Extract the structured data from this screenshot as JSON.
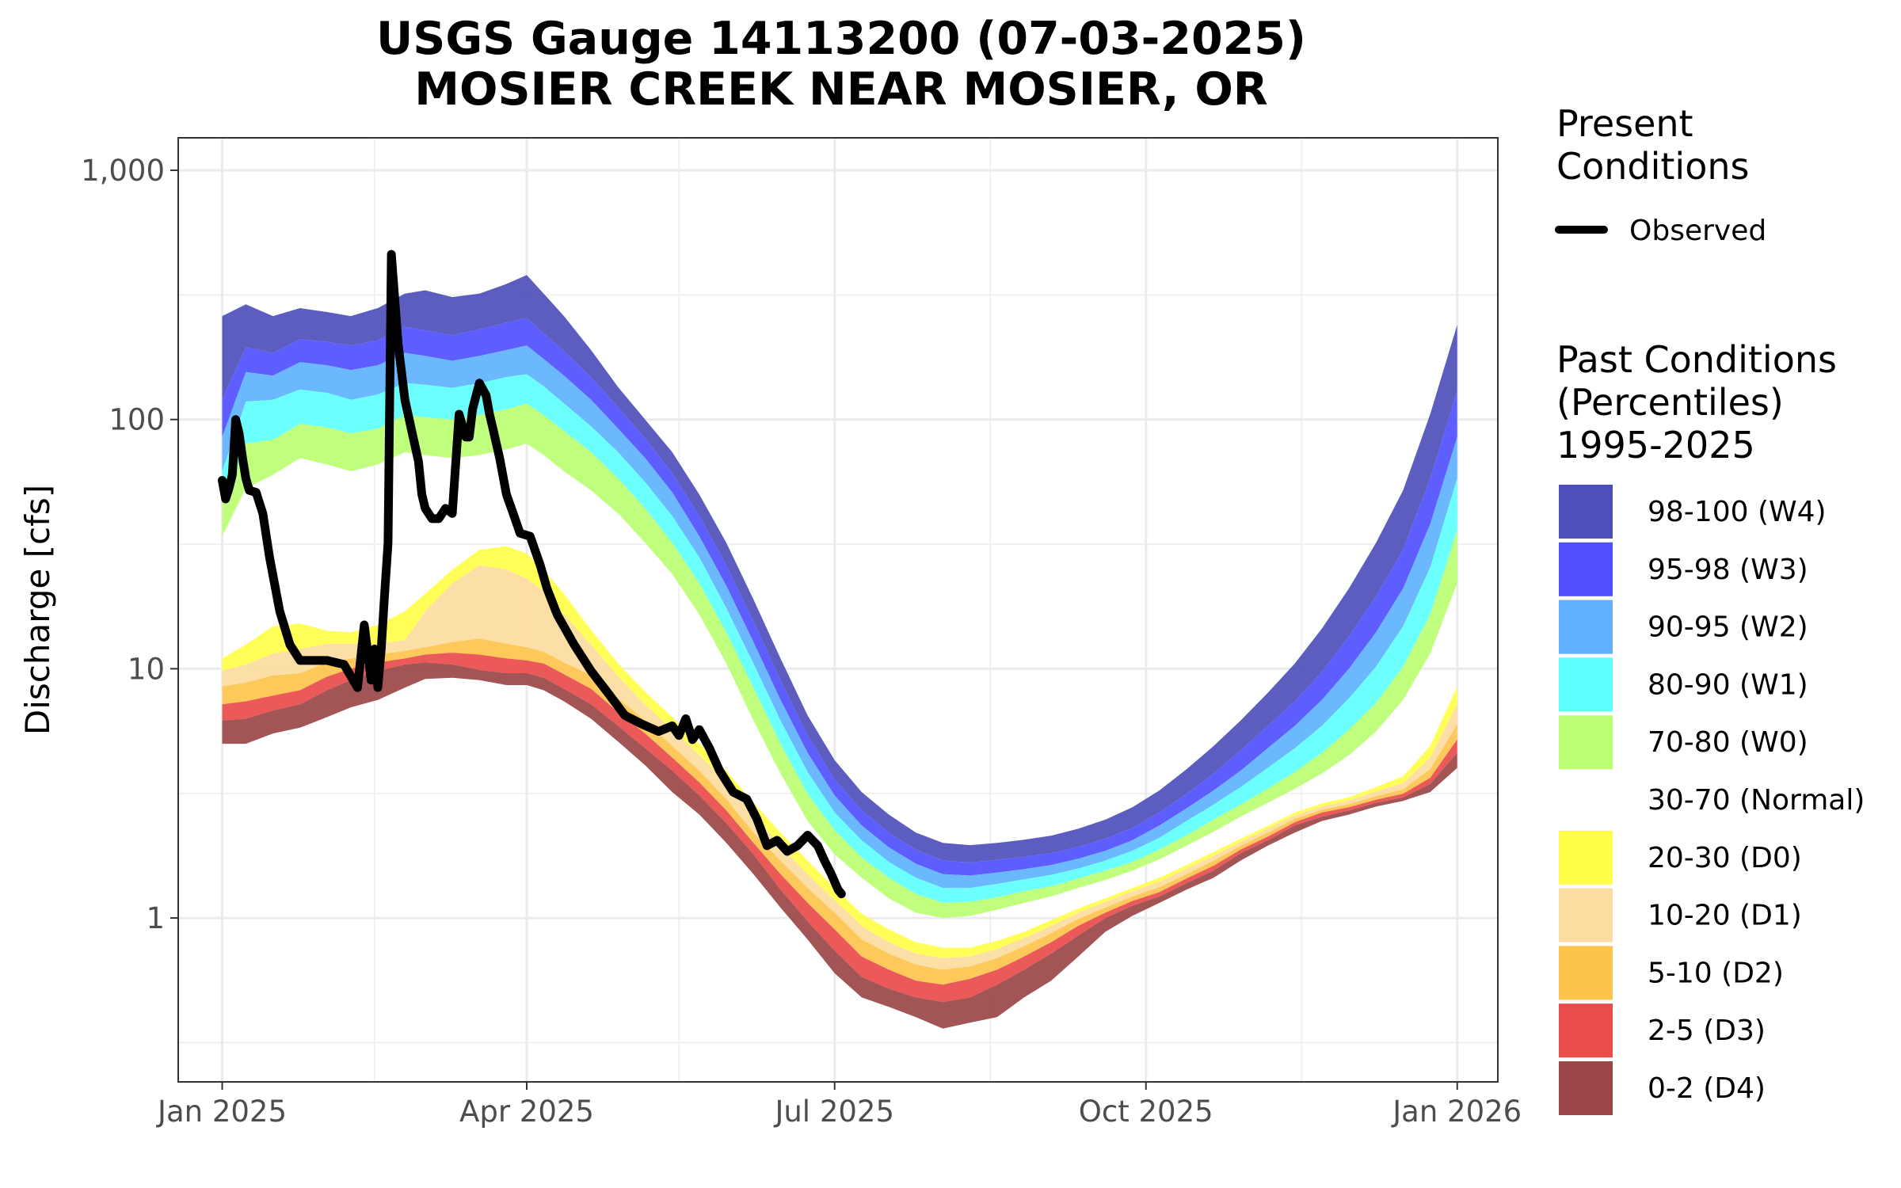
{
  "chart_data": {
    "type": "area",
    "title_line1": "USGS Gauge 14113200 (07-03-2025)",
    "title_line2": "MOSIER CREEK NEAR MOSIER, OR",
    "xlabel": "",
    "ylabel": "Discharge [cfs]",
    "y_scale": "log10",
    "ylim": [
      0.22,
      1350
    ],
    "xlim": [
      "2024-12-19",
      "2026-01-13"
    ],
    "grid": true,
    "legend_position": "right",
    "x_ticks": [
      {
        "date": "2025-01-01",
        "label": "Jan 2025"
      },
      {
        "date": "2025-04-01",
        "label": "Apr 2025"
      },
      {
        "date": "2025-07-01",
        "label": "Jul 2025"
      },
      {
        "date": "2025-10-01",
        "label": "Oct 2025"
      },
      {
        "date": "2026-01-01",
        "label": "Jan 2026"
      }
    ],
    "x_minor_ticks": [
      "2025-02-15",
      "2025-05-16",
      "2025-08-16",
      "2025-11-16"
    ],
    "y_ticks": [
      {
        "value": 1,
        "label": "1"
      },
      {
        "value": 10,
        "label": "10"
      },
      {
        "value": 100,
        "label": "100"
      },
      {
        "value": 1000,
        "label": "1,000"
      }
    ],
    "y_minor_ticks": [
      0.316,
      3.16,
      31.6,
      316
    ],
    "legend_present_title_line1": "Present",
    "legend_present_title_line2": "Conditions",
    "legend_observed_label": "Observed",
    "legend_past_title_line1": "Past Conditions",
    "legend_past_title_line2": "(Percentiles)",
    "legend_past_title_line3": "1995-2025",
    "band_legend": [
      {
        "label": "98-100 (W4)",
        "color": "#4f4fba"
      },
      {
        "label": "95-98 (W3)",
        "color": "#5050ff"
      },
      {
        "label": "90-95 (W2)",
        "color": "#5eb2ff"
      },
      {
        "label": "80-90 (W1)",
        "color": "#5efffd"
      },
      {
        "label": "70-80 (W0)",
        "color": "#bbff72"
      },
      {
        "label": "30-70 (Normal)",
        "color": "#ffffff"
      },
      {
        "label": "20-30 (D0)",
        "color": "#ffff4a"
      },
      {
        "label": "10-20 (D1)",
        "color": "#fcdca0"
      },
      {
        "label": "5-10 (D2)",
        "color": "#fdc44c"
      },
      {
        "label": "2-5 (D3)",
        "color": "#ea4b4b"
      },
      {
        "label": "0-2 (D4)",
        "color": "#9b4747"
      }
    ],
    "percentile_dates": [
      "2025-01-01",
      "2025-01-08",
      "2025-01-16",
      "2025-01-24",
      "2025-02-01",
      "2025-02-08",
      "2025-02-16",
      "2025-02-24",
      "2025-03-02",
      "2025-03-10",
      "2025-03-18",
      "2025-03-26",
      "2025-04-01",
      "2025-04-06",
      "2025-04-12",
      "2025-04-20",
      "2025-04-28",
      "2025-05-06",
      "2025-05-14",
      "2025-05-22",
      "2025-05-30",
      "2025-06-07",
      "2025-06-15",
      "2025-06-23",
      "2025-07-01",
      "2025-07-09",
      "2025-07-17",
      "2025-07-25",
      "2025-08-02",
      "2025-08-10",
      "2025-08-18",
      "2025-08-26",
      "2025-09-03",
      "2025-09-11",
      "2025-09-19",
      "2025-09-27",
      "2025-10-05",
      "2025-10-13",
      "2025-10-21",
      "2025-10-29",
      "2025-11-06",
      "2025-11-14",
      "2025-11-22",
      "2025-11-30",
      "2025-12-08",
      "2025-12-16",
      "2025-12-24",
      "2026-01-01"
    ],
    "percentile_bands": {
      "p0": [
        5.0,
        5.0,
        5.5,
        5.8,
        6.4,
        7.0,
        7.5,
        8.4,
        9.1,
        9.2,
        9.0,
        8.6,
        8.6,
        8.2,
        7.4,
        6.3,
        5.1,
        4.1,
        3.2,
        2.6,
        2.0,
        1.5,
        1.1,
        0.82,
        0.6,
        0.48,
        0.44,
        0.4,
        0.36,
        0.38,
        0.4,
        0.48,
        0.56,
        0.7,
        0.88,
        1.02,
        1.15,
        1.3,
        1.45,
        1.7,
        1.95,
        2.2,
        2.45,
        2.6,
        2.8,
        2.95,
        3.2,
        4.0
      ],
      "p2": [
        6.2,
        6.3,
        6.8,
        7.2,
        8.2,
        9.0,
        9.8,
        10.4,
        10.6,
        10.4,
        9.9,
        9.6,
        9.6,
        9.2,
        8.3,
        7.2,
        5.9,
        4.8,
        3.9,
        3.1,
        2.4,
        1.8,
        1.3,
        0.97,
        0.74,
        0.58,
        0.52,
        0.48,
        0.46,
        0.48,
        0.54,
        0.62,
        0.72,
        0.85,
        1.0,
        1.12,
        1.22,
        1.38,
        1.55,
        1.82,
        2.05,
        2.35,
        2.55,
        2.7,
        2.9,
        3.05,
        3.45,
        4.6
      ],
      "p5": [
        7.2,
        7.4,
        7.8,
        8.2,
        9.3,
        10.0,
        10.6,
        11.0,
        11.4,
        11.6,
        11.4,
        11.0,
        10.8,
        10.5,
        9.5,
        8.3,
        6.7,
        5.5,
        4.4,
        3.5,
        2.7,
        2.0,
        1.5,
        1.15,
        0.9,
        0.7,
        0.62,
        0.56,
        0.54,
        0.57,
        0.62,
        0.7,
        0.8,
        0.93,
        1.05,
        1.17,
        1.27,
        1.44,
        1.62,
        1.88,
        2.12,
        2.42,
        2.65,
        2.78,
        2.98,
        3.15,
        3.65,
        5.2
      ],
      "p10": [
        8.5,
        8.8,
        9.4,
        9.6,
        10.6,
        11.0,
        11.4,
        11.8,
        12.2,
        12.8,
        13.2,
        12.6,
        12.2,
        11.7,
        10.6,
        9.4,
        7.6,
        6.2,
        4.9,
        3.9,
        3.0,
        2.2,
        1.7,
        1.32,
        1.05,
        0.82,
        0.72,
        0.65,
        0.62,
        0.64,
        0.69,
        0.77,
        0.87,
        0.99,
        1.1,
        1.22,
        1.33,
        1.5,
        1.7,
        1.95,
        2.2,
        2.5,
        2.72,
        2.86,
        3.08,
        3.28,
        3.95,
        6.0
      ],
      "p20": [
        9.8,
        10.4,
        11.5,
        12.0,
        12.6,
        12.6,
        12.6,
        13.0,
        17.0,
        22.0,
        26.0,
        25.0,
        23.0,
        20.5,
        16.5,
        12.5,
        9.3,
        7.2,
        5.7,
        4.5,
        3.5,
        2.6,
        1.95,
        1.5,
        1.18,
        0.93,
        0.8,
        0.72,
        0.69,
        0.7,
        0.75,
        0.83,
        0.93,
        1.05,
        1.16,
        1.28,
        1.4,
        1.58,
        1.78,
        2.02,
        2.28,
        2.58,
        2.8,
        2.96,
        3.22,
        3.48,
        4.4,
        7.2
      ],
      "p30": [
        11.0,
        12.5,
        14.8,
        15.2,
        14.2,
        14.0,
        15.0,
        17.0,
        20.0,
        25.0,
        30.0,
        31.0,
        29.0,
        25.0,
        20.0,
        14.3,
        10.5,
        8.1,
        6.4,
        5.0,
        3.9,
        2.9,
        2.2,
        1.7,
        1.32,
        1.04,
        0.9,
        0.8,
        0.76,
        0.76,
        0.81,
        0.88,
        0.98,
        1.09,
        1.2,
        1.32,
        1.45,
        1.63,
        1.84,
        2.08,
        2.34,
        2.65,
        2.88,
        3.05,
        3.35,
        3.7,
        4.9,
        8.5
      ],
      "p70": [
        34,
        53,
        60,
        70,
        66,
        62,
        66,
        74,
        72,
        70,
        72,
        76,
        80,
        72,
        62,
        52,
        42,
        32,
        24,
        16.5,
        10.5,
        6.2,
        3.8,
        2.45,
        1.8,
        1.45,
        1.2,
        1.05,
        1.0,
        1.02,
        1.08,
        1.15,
        1.22,
        1.32,
        1.42,
        1.55,
        1.72,
        1.95,
        2.22,
        2.55,
        2.9,
        3.3,
        3.8,
        4.5,
        5.6,
        7.5,
        11.5,
        22
      ],
      "p80": [
        46,
        80,
        83,
        96,
        93,
        88,
        92,
        104,
        102,
        100,
        104,
        110,
        116,
        104,
        90,
        74,
        58,
        44,
        32,
        22,
        14.0,
        8.4,
        5.0,
        3.15,
        2.25,
        1.75,
        1.45,
        1.25,
        1.15,
        1.16,
        1.21,
        1.28,
        1.34,
        1.44,
        1.55,
        1.68,
        1.88,
        2.15,
        2.48,
        2.85,
        3.3,
        3.85,
        4.6,
        5.7,
        7.3,
        10.2,
        16.5,
        36
      ],
      "p90": [
        62,
        118,
        120,
        132,
        128,
        120,
        126,
        140,
        138,
        134,
        140,
        148,
        152,
        136,
        116,
        94,
        74,
        56,
        41,
        28,
        17.5,
        10.5,
        6.2,
        3.85,
        2.65,
        2.05,
        1.68,
        1.45,
        1.32,
        1.32,
        1.37,
        1.43,
        1.49,
        1.58,
        1.7,
        1.86,
        2.1,
        2.45,
        2.85,
        3.35,
        4.0,
        4.8,
        5.9,
        7.6,
        10.2,
        14.8,
        25.5,
        58
      ],
      "p95": [
        85,
        155,
        150,
        170,
        165,
        158,
        165,
        185,
        180,
        172,
        180,
        190,
        198,
        175,
        150,
        120,
        92,
        70,
        51,
        34,
        21.5,
        12.8,
        7.5,
        4.6,
        3.1,
        2.35,
        1.92,
        1.65,
        1.5,
        1.48,
        1.52,
        1.57,
        1.63,
        1.73,
        1.86,
        2.05,
        2.35,
        2.75,
        3.25,
        3.9,
        4.8,
        5.9,
        7.5,
        10.0,
        14.0,
        21.0,
        38,
        85
      ],
      "p98": [
        120,
        195,
        185,
        210,
        205,
        198,
        208,
        235,
        228,
        218,
        230,
        245,
        255,
        222,
        188,
        148,
        112,
        84,
        61,
        41,
        26.0,
        15.5,
        9.0,
        5.4,
        3.6,
        2.7,
        2.2,
        1.88,
        1.7,
        1.67,
        1.71,
        1.76,
        1.82,
        1.93,
        2.08,
        2.3,
        2.65,
        3.15,
        3.8,
        4.7,
        5.9,
        7.4,
        9.7,
        13.5,
        19.5,
        30.0,
        58,
        130
      ],
      "p100": [
        260,
        290,
        260,
        280,
        270,
        260,
        280,
        320,
        330,
        310,
        320,
        350,
        380,
        320,
        260,
        190,
        135,
        100,
        74,
        50,
        32.0,
        19.0,
        11.0,
        6.5,
        4.3,
        3.2,
        2.6,
        2.2,
        2.0,
        1.96,
        2.0,
        2.06,
        2.14,
        2.28,
        2.48,
        2.78,
        3.25,
        3.95,
        4.9,
        6.2,
        8.0,
        10.5,
        14.5,
        21.0,
        32.0,
        52.0,
        105,
        240
      ]
    },
    "observed": {
      "name": "Observed",
      "color": "#000000",
      "dates": [
        "2025-01-01",
        "2025-01-02",
        "2025-01-03",
        "2025-01-04",
        "2025-01-05",
        "2025-01-06",
        "2025-01-07",
        "2025-01-08",
        "2025-01-09",
        "2025-01-11",
        "2025-01-13",
        "2025-01-15",
        "2025-01-18",
        "2025-01-21",
        "2025-01-24",
        "2025-01-27",
        "2025-02-01",
        "2025-02-06",
        "2025-02-10",
        "2025-02-12",
        "2025-02-14",
        "2025-02-15",
        "2025-02-16",
        "2025-02-17",
        "2025-02-18",
        "2025-02-19",
        "2025-02-20",
        "2025-02-22",
        "2025-02-24",
        "2025-02-26",
        "2025-02-28",
        "2025-03-01",
        "2025-03-02",
        "2025-03-04",
        "2025-03-06",
        "2025-03-08",
        "2025-03-10",
        "2025-03-12",
        "2025-03-14",
        "2025-03-15",
        "2025-03-16",
        "2025-03-18",
        "2025-03-20",
        "2025-03-21",
        "2025-03-22",
        "2025-03-24",
        "2025-03-26",
        "2025-03-28",
        "2025-03-30",
        "2025-04-02",
        "2025-04-05",
        "2025-04-07",
        "2025-04-10",
        "2025-04-15",
        "2025-04-20",
        "2025-04-25",
        "2025-04-30",
        "2025-05-05",
        "2025-05-10",
        "2025-05-14",
        "2025-05-16",
        "2025-05-18",
        "2025-05-20",
        "2025-05-22",
        "2025-05-25",
        "2025-05-28",
        "2025-06-01",
        "2025-06-05",
        "2025-06-08",
        "2025-06-11",
        "2025-06-14",
        "2025-06-17",
        "2025-06-20",
        "2025-06-23",
        "2025-06-26",
        "2025-06-28",
        "2025-06-30",
        "2025-07-02",
        "2025-07-03"
      ],
      "values": [
        57,
        48,
        53,
        60,
        100,
        88,
        70,
        58,
        52,
        51,
        42,
        28,
        17,
        12.5,
        10.8,
        10.8,
        10.8,
        10.4,
        8.4,
        15,
        9.0,
        12,
        8.4,
        12,
        20,
        32,
        460,
        200,
        120,
        90,
        68,
        50,
        44,
        40,
        40,
        44,
        42,
        105,
        85,
        85,
        110,
        140,
        125,
        105,
        92,
        70,
        50,
        42,
        35,
        34,
        26,
        21,
        16.5,
        12.5,
        9.8,
        8.0,
        6.5,
        6.0,
        5.6,
        5.9,
        5.4,
        6.3,
        5.2,
        5.7,
        4.8,
        3.9,
        3.2,
        3.0,
        2.5,
        1.95,
        2.05,
        1.85,
        1.95,
        2.15,
        1.95,
        1.7,
        1.5,
        1.3,
        1.25
      ]
    }
  }
}
